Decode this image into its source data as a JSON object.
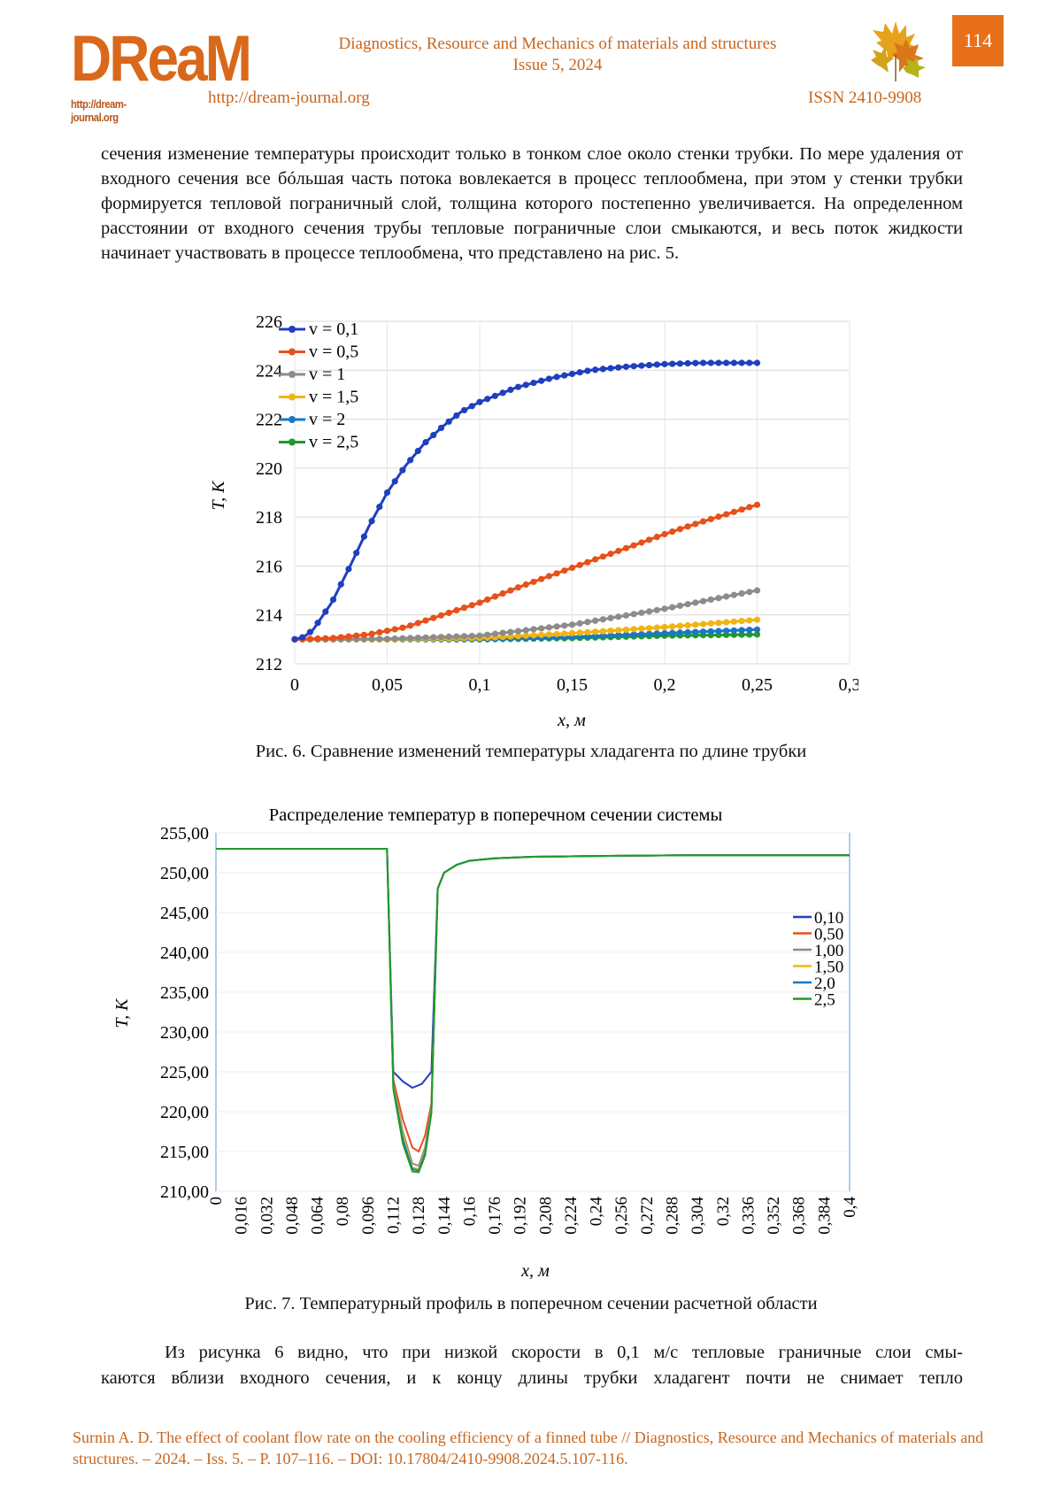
{
  "header": {
    "logo_word": "DReaM",
    "logo_url": "http://dream-journal.org",
    "journal_title_line1": "Diagnostics, Resource and Mechanics of materials and structures",
    "journal_title_line2": "Issue 5, 2024",
    "journal_url": "http://dream-journal.org",
    "issn": "ISSN 2410-9908",
    "page_number": "114"
  },
  "body_paragraph": "сечения изменение температуры происходит только в тонком слое около стенки трубки. По мере удаления от входного сечения все бóльшая часть потока вовлекается в процесс теплообмена, при этом у стенки трубки формируется тепловой пограничный слой, толщина которого постепенно увеличивается. На определенном расстоянии от входного сечения трубы тепловые пограничные слои смыкаются, и весь поток жидкости начинает участвовать в процессе теплообмена, что представлено на рис. 5.",
  "figure6_caption": "Рис. 6. Сравнение изменений температуры хладагента по длине трубки",
  "figure7_caption": "Рис. 7. Температурный профиль в поперечном сечении расчетной области",
  "tail_paragraph_line1": "Из рисунка 6 видно, что при низкой скорости в 0,1 м/с тепловые граничные слои смы-",
  "tail_paragraph_line2": "каются вблизи входного сечения, и к концу длины трубки хладагент почти не снимает тепло",
  "footer_citation": "Surnin A. D. The effect of coolant flow rate on the cooling efficiency of a finned tube // Diagnostics, Resource and Mechanics of materials and structures. – 2024. – Iss. 5. – P. 107–116. – DOI: 10.17804/2410-9908.2024.5.107-116.",
  "colors": {
    "accent": "#c8661e",
    "page_box": "#e8701a"
  },
  "chart_data": [
    {
      "type": "line",
      "title": "",
      "xlabel": "x, м",
      "ylabel": "T, K",
      "xlim": [
        0,
        0.3
      ],
      "ylim": [
        212,
        226
      ],
      "x_ticks": [
        "0",
        "0,05",
        "0,1",
        "0,15",
        "0,2",
        "0,25",
        "0,3"
      ],
      "y_ticks": [
        "212",
        "214",
        "216",
        "218",
        "220",
        "222",
        "224",
        "226"
      ],
      "grid": true,
      "legend": "top-left",
      "series": [
        {
          "name": "v = 0,1",
          "color": "#1f3fbf",
          "x": [
            0,
            0.005,
            0.01,
            0.02,
            0.03,
            0.04,
            0.05,
            0.06,
            0.07,
            0.08,
            0.09,
            0.1,
            0.12,
            0.14,
            0.16,
            0.18,
            0.2,
            0.22,
            0.25
          ],
          "y": [
            213,
            213.1,
            213.4,
            214.5,
            216.0,
            217.6,
            219.0,
            220.1,
            221.0,
            221.7,
            222.3,
            222.7,
            223.3,
            223.7,
            224.0,
            224.15,
            224.25,
            224.3,
            224.3
          ]
        },
        {
          "name": "v = 0,5",
          "color": "#e8501a",
          "x": [
            0,
            0.02,
            0.04,
            0.06,
            0.08,
            0.1,
            0.12,
            0.14,
            0.16,
            0.18,
            0.2,
            0.22,
            0.25
          ],
          "y": [
            213,
            213.05,
            213.2,
            213.5,
            214.0,
            214.5,
            215.1,
            215.65,
            216.2,
            216.75,
            217.3,
            217.8,
            218.5
          ]
        },
        {
          "name": "v = 1",
          "color": "#8c8c8c",
          "x": [
            0,
            0.05,
            0.1,
            0.15,
            0.2,
            0.25
          ],
          "y": [
            213,
            213.02,
            213.15,
            213.6,
            214.25,
            215.0
          ]
        },
        {
          "name": "v = 1,5",
          "color": "#f2b411",
          "x": [
            0,
            0.05,
            0.1,
            0.15,
            0.2,
            0.25
          ],
          "y": [
            213,
            213.0,
            213.05,
            213.25,
            213.5,
            213.8
          ]
        },
        {
          "name": "v = 2",
          "color": "#1a78c2",
          "x": [
            0,
            0.05,
            0.1,
            0.15,
            0.2,
            0.25
          ],
          "y": [
            213,
            213.0,
            213.0,
            213.1,
            213.25,
            213.4
          ]
        },
        {
          "name": "v = 2,5",
          "color": "#1f9a2a",
          "x": [
            0,
            0.05,
            0.1,
            0.15,
            0.2,
            0.25
          ],
          "y": [
            213,
            213.0,
            213.0,
            213.05,
            213.15,
            213.2
          ]
        }
      ]
    },
    {
      "type": "line",
      "title": "Распределение температур в поперечном сечении системы",
      "xlabel": "x, м",
      "ylabel": "T, K",
      "xlim": [
        0,
        0.4
      ],
      "ylim": [
        210,
        255
      ],
      "x_ticks": [
        "0",
        "0,016",
        "0,032",
        "0,048",
        "0,064",
        "0,08",
        "0,096",
        "0,112",
        "0,128",
        "0,144",
        "0,16",
        "0,176",
        "0,192",
        "0,208",
        "0,224",
        "0,24",
        "0,256",
        "0,272",
        "0,288",
        "0,304",
        "0,32",
        "0,336",
        "0,352",
        "0,368",
        "0,384",
        "0,4"
      ],
      "y_ticks": [
        "210,00",
        "215,00",
        "220,00",
        "225,00",
        "230,00",
        "235,00",
        "240,00",
        "245,00",
        "250,00",
        "255,00"
      ],
      "grid": true,
      "legend": "right",
      "series": [
        {
          "name": "0,10",
          "color": "#1f3fbf",
          "x": [
            0,
            0.108,
            0.112,
            0.118,
            0.124,
            0.13,
            0.136,
            0.14,
            0.144,
            0.152,
            0.16,
            0.176,
            0.2,
            0.24,
            0.3,
            0.4
          ],
          "y": [
            253,
            253,
            225.0,
            223.8,
            223.0,
            223.5,
            225.0,
            248.0,
            250.0,
            251.0,
            251.5,
            251.8,
            252.0,
            252.1,
            252.2,
            252.2
          ]
        },
        {
          "name": "0,50",
          "color": "#e8501a",
          "x": [
            0,
            0.108,
            0.112,
            0.118,
            0.124,
            0.128,
            0.132,
            0.136,
            0.14,
            0.144,
            0.152,
            0.16,
            0.176,
            0.2,
            0.24,
            0.3,
            0.4
          ],
          "y": [
            253,
            253,
            224.0,
            219.0,
            215.5,
            215.0,
            217.0,
            221.0,
            248.0,
            250.0,
            251.0,
            251.5,
            251.8,
            252.0,
            252.1,
            252.2,
            252.2
          ]
        },
        {
          "name": "1,00",
          "color": "#8c8c8c",
          "x": [
            0,
            0.108,
            0.112,
            0.118,
            0.124,
            0.128,
            0.132,
            0.136,
            0.14,
            0.144,
            0.152,
            0.16,
            0.176,
            0.2,
            0.24,
            0.3,
            0.4
          ],
          "y": [
            253,
            253,
            223.5,
            217.5,
            213.5,
            213.2,
            215.5,
            220.5,
            248.0,
            250.0,
            251.0,
            251.5,
            251.8,
            252.0,
            252.1,
            252.2,
            252.2
          ]
        },
        {
          "name": "1,50",
          "color": "#f2b411",
          "x": [
            0,
            0.108,
            0.112,
            0.118,
            0.124,
            0.128,
            0.132,
            0.136,
            0.14,
            0.144,
            0.152,
            0.16,
            0.176,
            0.2,
            0.24,
            0.3,
            0.4
          ],
          "y": [
            253,
            253,
            223.2,
            217.0,
            213.0,
            212.8,
            215.0,
            220.2,
            248.0,
            250.0,
            251.0,
            251.5,
            251.8,
            252.0,
            252.1,
            252.2,
            252.2
          ]
        },
        {
          "name": "2,0",
          "color": "#1a78c2",
          "x": [
            0,
            0.108,
            0.112,
            0.118,
            0.124,
            0.128,
            0.132,
            0.136,
            0.14,
            0.144,
            0.152,
            0.16,
            0.176,
            0.2,
            0.24,
            0.3,
            0.4
          ],
          "y": [
            253,
            253,
            223.0,
            216.5,
            212.8,
            212.6,
            214.8,
            220.0,
            248.0,
            250.0,
            251.0,
            251.5,
            251.8,
            252.0,
            252.1,
            252.2,
            252.2
          ]
        },
        {
          "name": "2,5",
          "color": "#1f9a2a",
          "x": [
            0,
            0.108,
            0.112,
            0.118,
            0.124,
            0.128,
            0.132,
            0.136,
            0.14,
            0.144,
            0.152,
            0.16,
            0.176,
            0.2,
            0.24,
            0.3,
            0.4
          ],
          "y": [
            253,
            253,
            222.8,
            216.0,
            212.5,
            212.4,
            214.5,
            219.8,
            248.0,
            250.0,
            251.0,
            251.5,
            251.8,
            252.0,
            252.1,
            252.2,
            252.2
          ]
        }
      ]
    }
  ]
}
